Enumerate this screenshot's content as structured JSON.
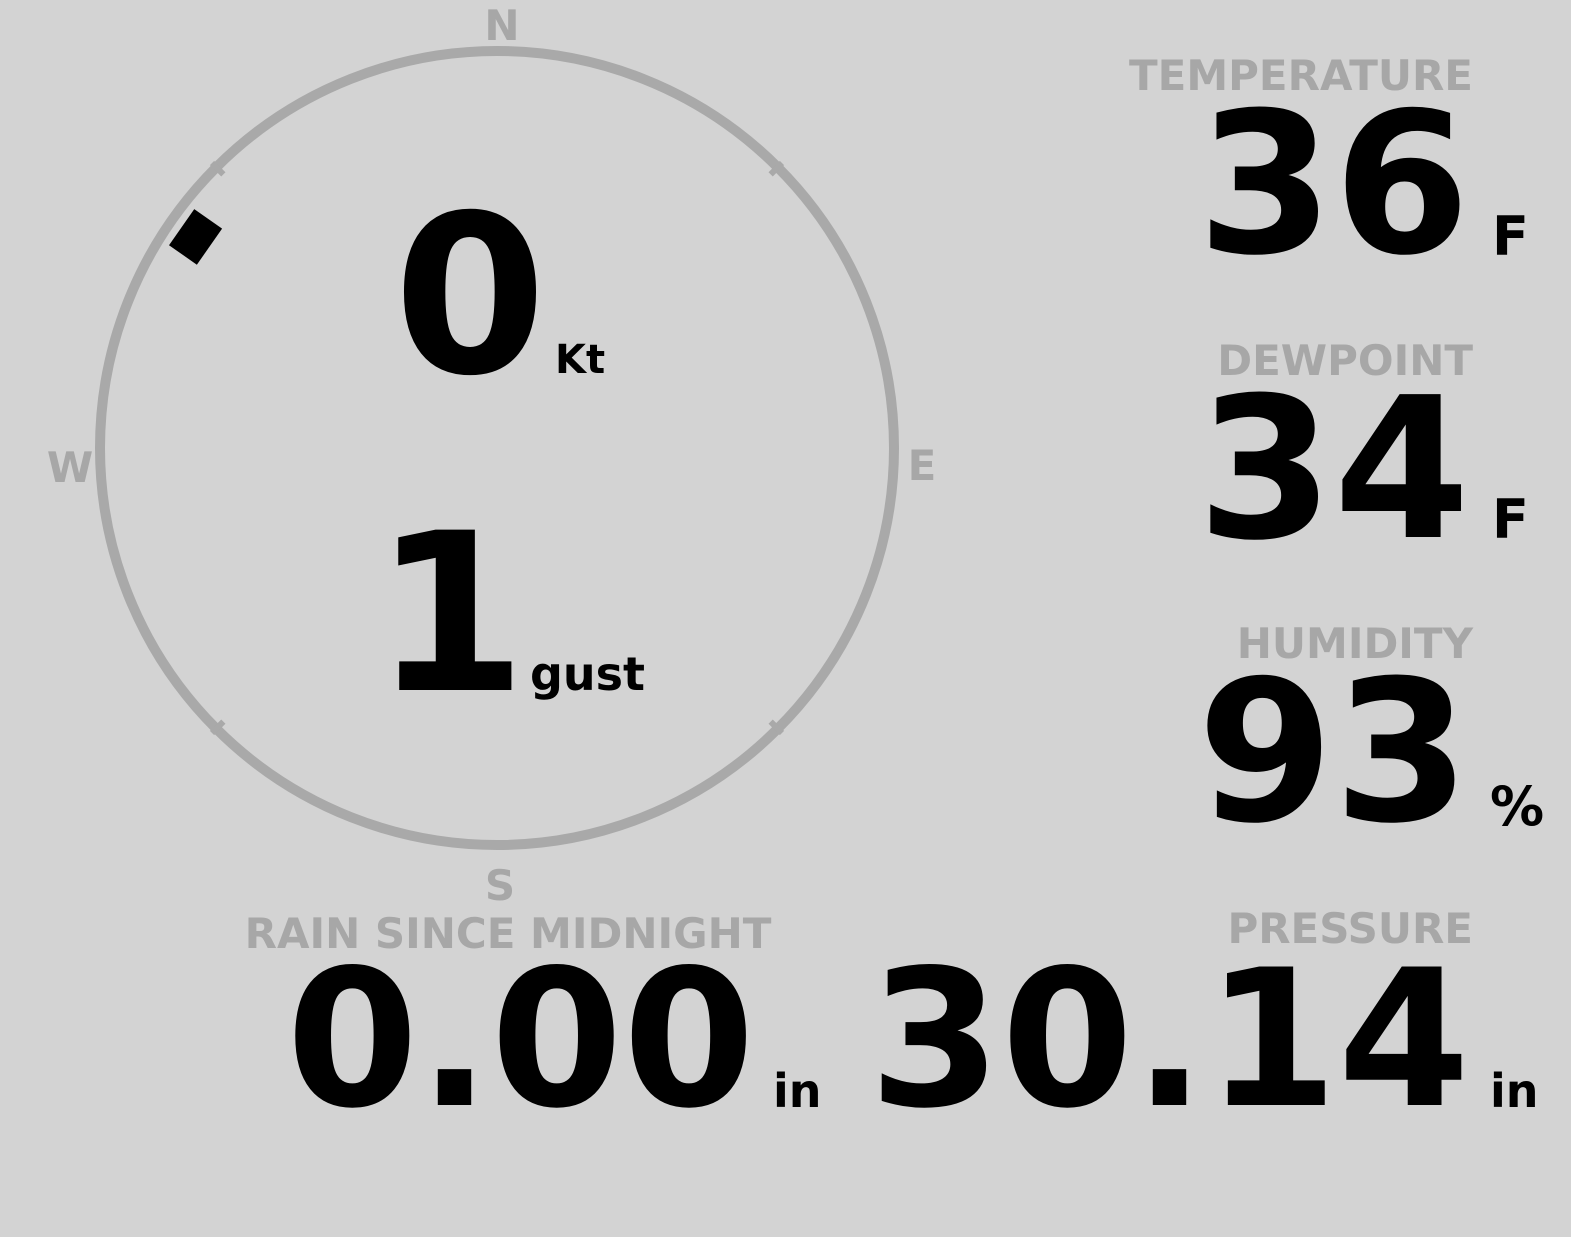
{
  "compass": {
    "north": "N",
    "east": "E",
    "south": "S",
    "west": "W"
  },
  "wind": {
    "speed": "0",
    "speed_unit": "Kt",
    "gust": "1",
    "gust_unit": "gust",
    "direction": 305
  },
  "temperature": {
    "label": "TEMPERATURE",
    "value": "36",
    "unit": "F"
  },
  "dewpoint": {
    "label": "DEWPOINT",
    "value": "34",
    "unit": "F"
  },
  "humidity": {
    "label": "HUMIDITY",
    "value": "93",
    "unit": "%"
  },
  "rain": {
    "label": "RAIN SINCE MIDNIGHT",
    "value": "0.00",
    "unit": "in"
  },
  "pressure": {
    "label": "PRESSURE",
    "value": "30.14",
    "unit": "in"
  }
}
